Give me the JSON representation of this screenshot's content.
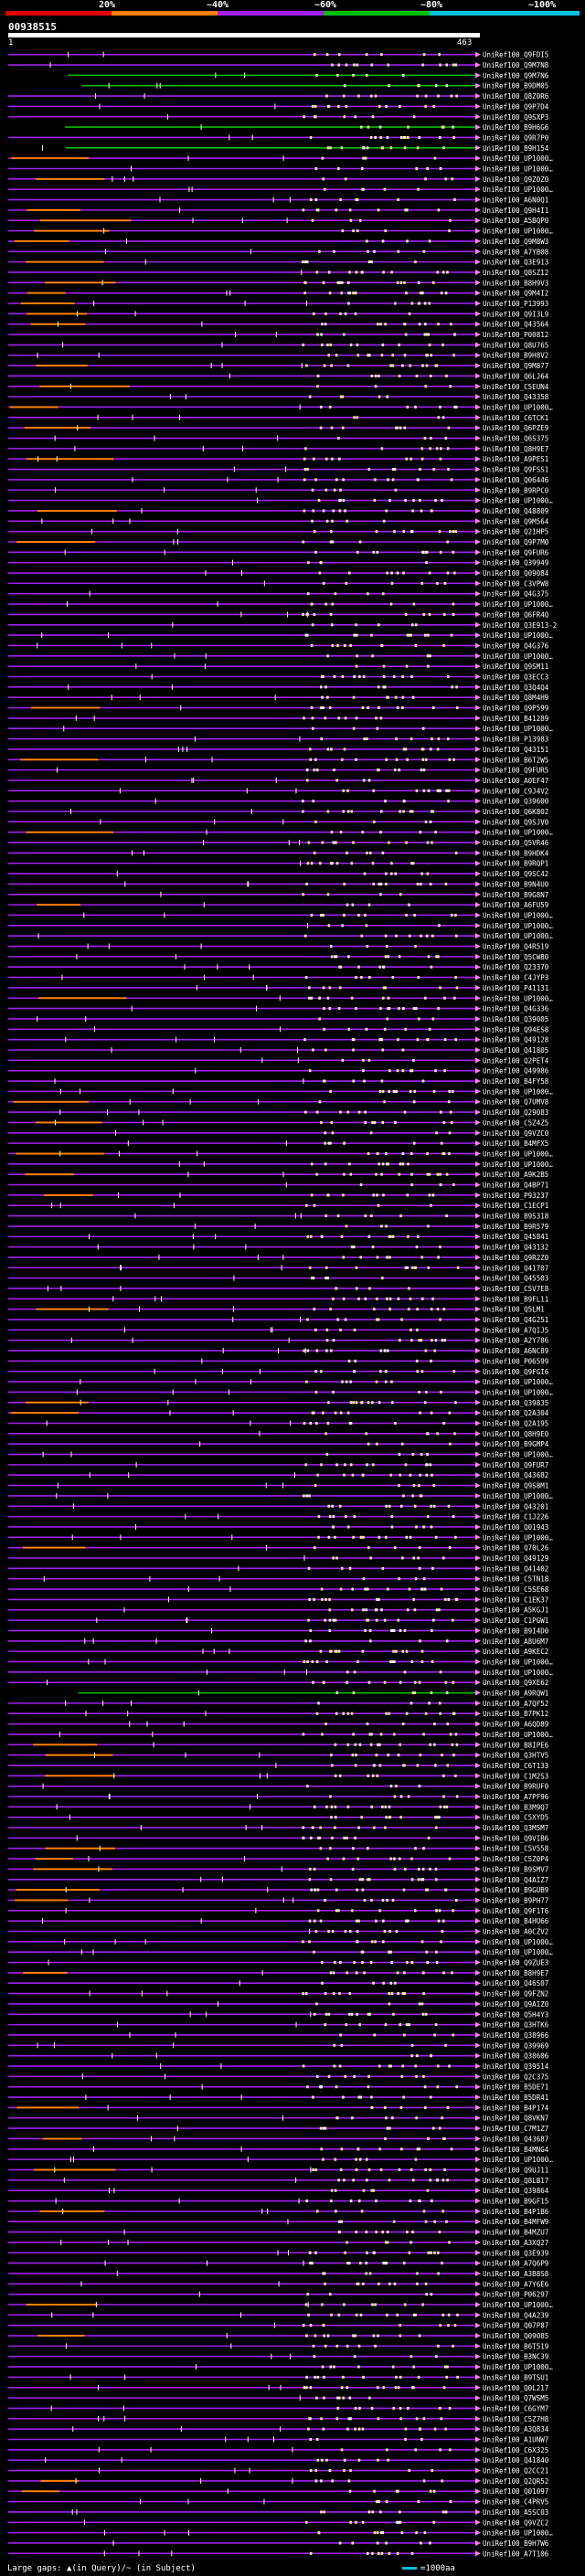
{
  "scale": {
    "ticks": [
      "20%",
      "~40%",
      "~60%",
      "~80%",
      "~100%"
    ],
    "colors": [
      "#e00000",
      "#ff8000",
      "#a020f0",
      "#00c000",
      "#00c0e0"
    ]
  },
  "query": {
    "id": "00938515",
    "start": "1",
    "end": "463"
  },
  "chart_data": {
    "type": "alignment-coverage",
    "title": "00938515",
    "x_range": [
      1,
      463
    ],
    "hit_identity_classes": [
      "20%",
      "~40%",
      "~60%",
      "~80%",
      "~100%"
    ],
    "hits": [
      "UniRef100_Q9FDI5",
      "UniRef100_Q9M7N8",
      "UniRef100_Q9M7N6",
      "UniRef100_B9DM05",
      "UniRef100_Q8Z0R6",
      "UniRef100_Q9P7D4",
      "UniRef100_Q9SXP3",
      "UniRef100_B9H6G6",
      "UniRef100_Q9R7P0",
      "UniRef100_B9H154",
      "UniRef100_UP1000…",
      "UniRef100_UP1000…",
      "UniRef100_Q9Z0Z0",
      "UniRef100_UP1000…",
      "UniRef100_A6N0Q1",
      "UniRef100_Q9H4I1",
      "UniRef100_A5BQP0",
      "UniRef100_UP1000…",
      "UniRef100_Q9M8W3",
      "UniRef100_A7YB08",
      "UniRef100_Q3E913",
      "UniRef100_Q8SZ12",
      "UniRef100_B8H9V3",
      "UniRef100_Q9M4I2",
      "UniRef100_P13993",
      "UniRef100_Q9I3L9",
      "UniRef100_Q43564",
      "UniRef100_P00812",
      "UniRef100_Q8U765",
      "UniRef100_B9H8V2",
      "UniRef100_Q9M877",
      "UniRef100_Q6LJ64",
      "UniRef100_C5EUN4",
      "UniRef100_Q43358",
      "UniRef100_UP1000…",
      "UniRef100_C6TCK1",
      "UniRef100_Q6PZE9",
      "UniRef100_Q6S375",
      "UniRef100_Q8H9E7",
      "UniRef100_A9PES1",
      "UniRef100_Q9FSS1",
      "UniRef100_Q06446",
      "UniRef100_B9RPC0",
      "UniRef100_UP1000…",
      "UniRef100_Q48809",
      "UniRef100_Q9M564",
      "UniRef100_Q21HP5",
      "UniRef100_Q9P7M0",
      "UniRef100_Q9FUR6",
      "UniRef100_Q39949",
      "UniRef100_Q09084",
      "UniRef100_C3VPW8",
      "UniRef100_Q4G375",
      "UniRef100_UP1000…",
      "UniRef100_Q6FR4Q",
      "UniRef100_Q3E913-2",
      "UniRef100_UP1000…",
      "UniRef100_Q4G376",
      "UniRef100_UP1000…",
      "UniRef100_Q9SM11",
      "UniRef100_Q3ECC3",
      "UniRef100_Q3Q4Q4",
      "UniRef100_Q8M4H9",
      "UniRef100_Q9P599",
      "UniRef100_B41289",
      "UniRef100_UP1000…",
      "UniRef100_P13983",
      "UniRef100_Q43151",
      "UniRef100_B6T2W5",
      "UniRef100_Q9FUR5",
      "UniRef100_A0EF47",
      "UniRef100_C9J4V2",
      "UniRef100_Q39600",
      "UniRef100_Q6K802",
      "UniRef100_Q9SJV0",
      "UniRef100_UP1000…",
      "UniRef100_Q5VR46",
      "UniRef100_B9HDK4",
      "UniRef100_B9RQP1",
      "UniRef100_Q9SC42",
      "UniRef100_B9N4U0",
      "UniRef100_B9G8N7",
      "UniRef100_A6FU59",
      "UniRef100_UP1000…",
      "UniRef100_UP1000…",
      "UniRef100_UP1000…",
      "UniRef100_Q4R519",
      "UniRef100_Q5CW80",
      "UniRef100_Q23370",
      "UniRef100_C4JYP3",
      "UniRef100_P41131",
      "UniRef100_UP1000…",
      "UniRef100_Q4G336",
      "UniRef100_Q39005",
      "UniRef100_Q94ES8",
      "UniRef100_Q49128",
      "UniRef100_Q41805",
      "UniRef100_Q2PET4",
      "UniRef100_Q49986",
      "UniRef100_B4FY58",
      "UniRef100_UP1000…",
      "UniRef100_Q7UMV8",
      "UniRef100_Q29083",
      "UniRef100_C5Z4Z5",
      "UniRef100_Q9VZC0",
      "UniRef100_B4MFX5",
      "UniRef100_UP1000…",
      "UniRef100_UP1000…",
      "UniRef100_A9K2B5",
      "UniRef100_Q4BP71",
      "UniRef100_P93237",
      "UniRef100_C1ECP1",
      "UniRef100_B9S318",
      "UniRef100_B9R579",
      "UniRef100_Q45841",
      "UniRef100_Q43132",
      "UniRef100_Q9R2Z0",
      "UniRef100_Q41707",
      "UniRef100_Q45503",
      "UniRef100_C5V7E8",
      "UniRef100_B9FL11",
      "UniRef100_Q5LM1",
      "UniRef100_Q4G251",
      "UniRef100_A7QIJ5",
      "UniRef100_A2Y786",
      "UniRef100_A6NC89",
      "UniRef100_P06599",
      "UniRef100_Q9FGI6",
      "UniRef100_UP1000…",
      "UniRef100_UP1000…",
      "UniRef100_Q39835",
      "UniRef100_Q2A304",
      "UniRef100_Q2A195",
      "UniRef100_Q8H9E0",
      "UniRef100_B9GMP4",
      "UniRef100_UP1000…",
      "UniRef100_Q9FUR7",
      "UniRef100_Q43682",
      "UniRef100_Q9S8M1",
      "UniRef100_UP1000…",
      "UniRef100_Q43201",
      "UniRef100_C1J226",
      "UniRef100_Q01943",
      "UniRef100_UP1000…",
      "UniRef100_Q70L26",
      "UniRef100_Q49129",
      "UniRef100_Q41402",
      "UniRef100_C5TN18",
      "UniRef100_C5SE68",
      "UniRef100_C1EK37",
      "UniRef100_A5KGJ1",
      "UniRef100_C1PGW1",
      "UniRef100_B9I4D0",
      "UniRef100_A8U6M7",
      "UniRef100_A9KEC2",
      "UniRef100_UP1000…",
      "UniRef100_UP1000…",
      "UniRef100_Q9XE62",
      "UniRef100_A9RQW1",
      "UniRef100_A7QF52",
      "UniRef100_B7PK12",
      "UniRef100_A6QD89",
      "UniRef100_UP1000…",
      "UniRef100_B8IPE6",
      "UniRef100_Q3HTV5",
      "UniRef100_C6T133",
      "UniRef100_C1M2S3",
      "UniRef100_B9RUF0",
      "UniRef100_A7PF96",
      "UniRef100_B3M9Q7",
      "UniRef100_C5XYD5",
      "UniRef100_Q3M5M7",
      "UniRef100_Q9VIB6",
      "UniRef100_C5V558",
      "UniRef100_C5Z0P4",
      "UniRef100_B9SMV7",
      "UniRef100_Q4AIZ7",
      "UniRef100_B9GUB9",
      "UniRef100_B9PH77",
      "UniRef100_Q9F1T6",
      "UniRef100_B4HU66",
      "UniRef100_A0CZV2",
      "UniRef100_UP1000…",
      "UniRef100_UP1000…",
      "UniRef100_Q9ZUE3",
      "UniRef100_B8H9E7",
      "UniRef100_Q46S07",
      "UniRef100_Q9FZN2",
      "UniRef100_Q9AIZ0",
      "UniRef100_Q5H4Y3",
      "UniRef100_Q3HTK6",
      "UniRef100_Q38966",
      "UniRef100_Q39969",
      "UniRef100_Q38606",
      "UniRef100_Q39514",
      "UniRef100_Q2C375",
      "UniRef100_B5DE71",
      "UniRef100_B5DR41",
      "UniRef100_B4P174",
      "UniRef100_Q8VKN7",
      "UniRef100_C7M1Z7",
      "UniRef100_Q43687",
      "UniRef100_B4MNG4",
      "UniRef100_UP1000…",
      "UniRef100_Q9UJ11",
      "UniRef100_Q8LB17",
      "UniRef100_Q39864",
      "UniRef100_B9GF15",
      "UniRef100_B4P1B6",
      "UniRef100_B4MFW9",
      "UniRef100_B4MZU7",
      "UniRef100_A3XQ27",
      "UniRef100_Q3E939",
      "UniRef100_A7Q6P9",
      "UniRef100_A3B8S8",
      "UniRef100_A7Y6E6",
      "UniRef100_P06297",
      "UniRef100_UP1000…",
      "UniRef100_Q4A239",
      "UniRef100_Q07P87",
      "UniRef100_Q09085",
      "UniRef100_B6T519",
      "UniRef100_B3NC39",
      "UniRef100_UP1000…",
      "UniRef100_B9TSU1",
      "UniRef100_Q0L217",
      "UniRef100_Q7WSM5",
      "UniRef100_C6GYM7",
      "UniRef100_C5Z7H8",
      "UniRef100_A3Q834",
      "UniRef100_A1UNW7",
      "UniRef100_C6X325",
      "UniRef100_Q41840",
      "UniRef100_Q2CC21",
      "UniRef100_Q2QR52",
      "UniRef100_Q01097",
      "UniRef100_C4PRV5",
      "UniRef100_A5SC03",
      "UniRef100_Q9VZC2",
      "UniRef100_UP1000…",
      "UniRef100_B9H7W6",
      "UniRef100_A7T106"
    ]
  },
  "legend": {
    "text": "Large gaps: ▲(in Query)/~ (in Subject)",
    "key": "=1000aa"
  }
}
